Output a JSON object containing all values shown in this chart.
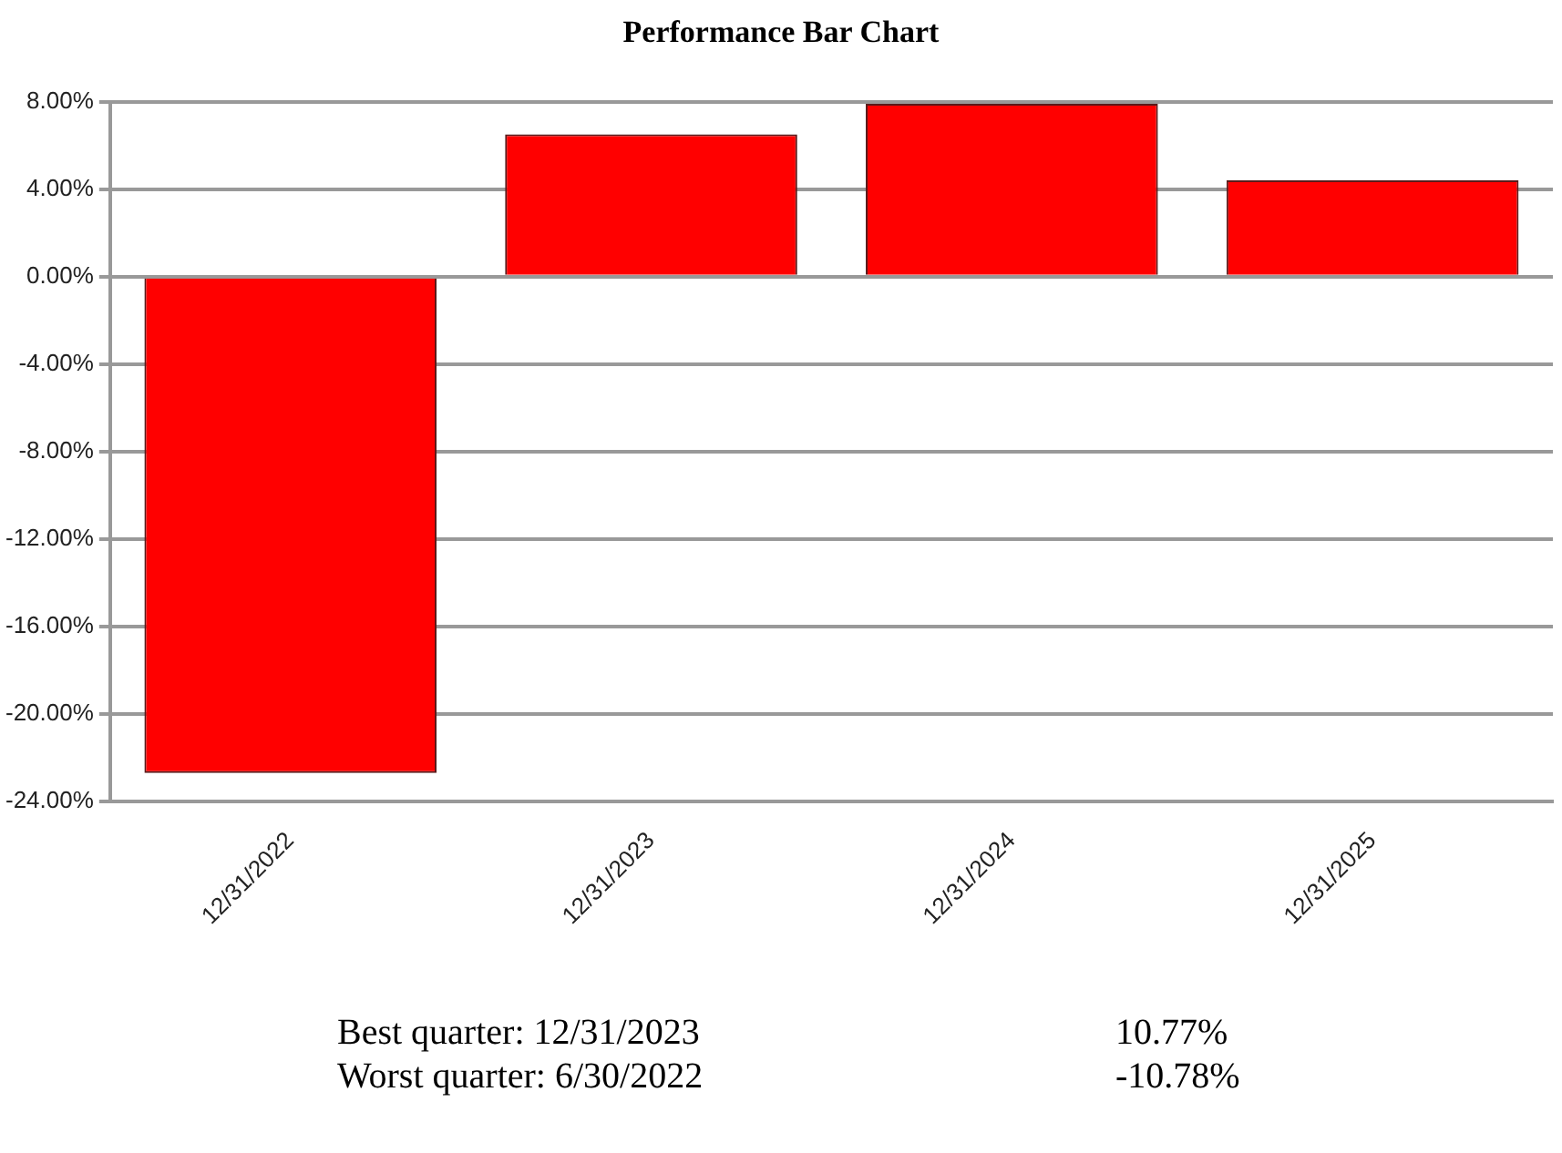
{
  "chart_data": {
    "type": "bar",
    "title": "Performance Bar Chart",
    "categories": [
      "12/31/2022",
      "12/31/2023",
      "12/31/2024",
      "12/31/2025"
    ],
    "values": [
      -22.7,
      6.5,
      7.9,
      4.4
    ],
    "color": "#ff0000",
    "ylim": [
      -24,
      8
    ],
    "yticks": [
      {
        "value": -24,
        "label": "-24.00%"
      },
      {
        "value": -20,
        "label": "-20.00%"
      },
      {
        "value": -16,
        "label": "-16.00%"
      },
      {
        "value": -12,
        "label": "-12.00%"
      },
      {
        "value": -8,
        "label": "-8.00%"
      },
      {
        "value": -4,
        "label": "-4.00%"
      },
      {
        "value": 0,
        "label": "0.00%"
      },
      {
        "value": 4,
        "label": "4.00%"
      },
      {
        "value": 8,
        "label": "8.00%"
      }
    ],
    "grid": "y",
    "annotations": [
      "Best quarter: 12/31/2023",
      "10.77%",
      "Worst quarter: 6/30/2022",
      "-10.78%"
    ]
  }
}
